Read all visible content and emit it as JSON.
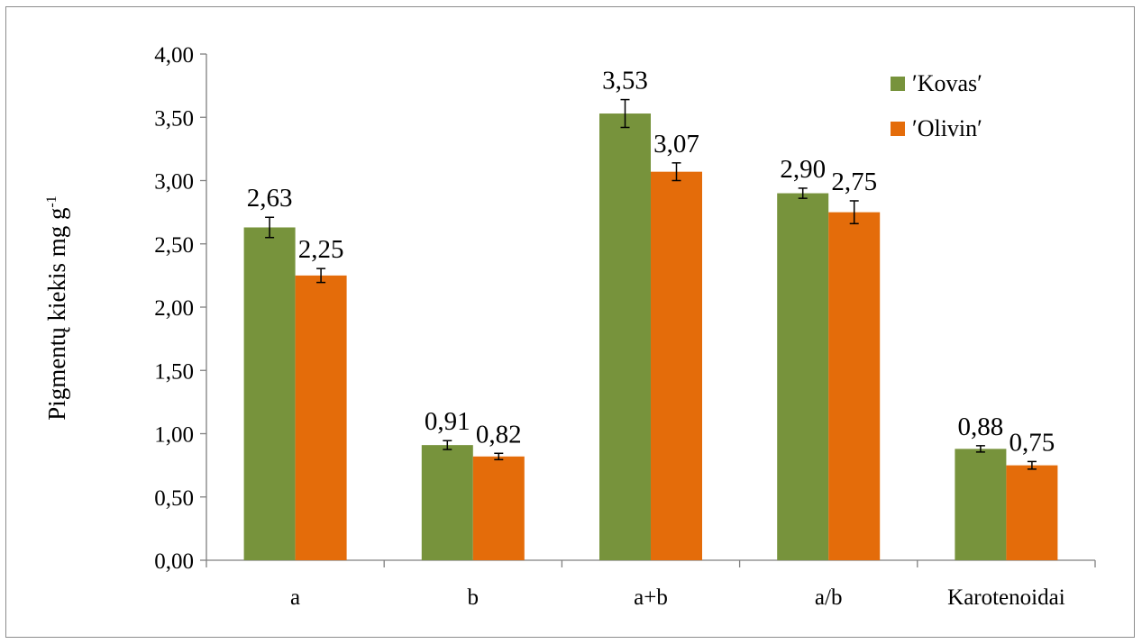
{
  "chart_data": {
    "type": "bar",
    "categories": [
      "a",
      "b",
      "a+b",
      "a/b",
      "Karotenoidai"
    ],
    "series": [
      {
        "name": "′Kovas′",
        "color": "#77933c",
        "values": [
          2.63,
          0.91,
          3.53,
          2.9,
          0.88
        ],
        "labels": [
          "2,63",
          "0,91",
          "3,53",
          "2,90",
          "0,88"
        ],
        "errors": [
          0.08,
          0.035,
          0.11,
          0.04,
          0.025
        ]
      },
      {
        "name": "′Olivin′",
        "color": "#e46c0a",
        "values": [
          2.25,
          0.82,
          3.07,
          2.75,
          0.75
        ],
        "labels": [
          "2,25",
          "0,82",
          "3,07",
          "2,75",
          "0,75"
        ],
        "errors": [
          0.055,
          0.025,
          0.07,
          0.09,
          0.03
        ]
      }
    ],
    "ylabel": "Pigmentų kiekis mg g",
    "ylabel_superscript": "-1",
    "xlabel": "",
    "ylim": [
      0,
      4
    ],
    "yticks": [
      "0,00",
      "0,50",
      "1,00",
      "1,50",
      "2,00",
      "2,50",
      "3,00",
      "3,50",
      "4,00"
    ],
    "grid": false,
    "legend_position": "top-right"
  }
}
